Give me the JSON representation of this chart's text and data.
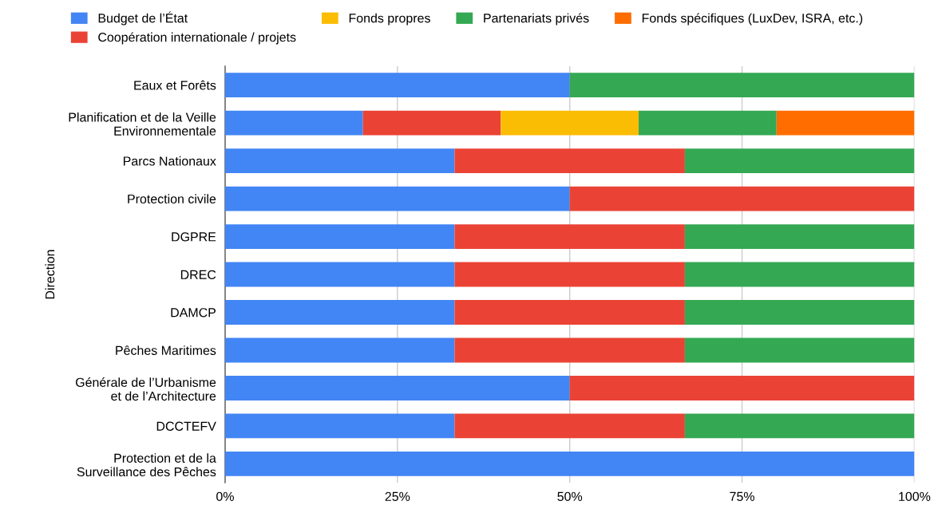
{
  "chart_data": {
    "type": "bar",
    "orientation": "horizontal",
    "stacked": true,
    "ylabel": "Direction",
    "categories": [
      "Eaux et Forêts",
      "Planification et de la Veille\nEnvironnementale",
      "Parcs Nationaux",
      "Protection civile",
      "DGPRE",
      "DREC",
      "DAMCP",
      "Pêches Maritimes",
      "Générale de l’Urbanisme\net de l’Architecture",
      "DCCTEFV",
      "Protection et de la\nSurveillance des Pêches"
    ],
    "series": [
      {
        "name": "Budget de l’État",
        "color": "#4285f4",
        "values": [
          50,
          20,
          33.3,
          50,
          33.3,
          33.3,
          33.3,
          33.3,
          50,
          33.3,
          100
        ]
      },
      {
        "name": "Coopération internationale / projets",
        "color": "#ea4335",
        "values": [
          null,
          20,
          33.4,
          50,
          33.4,
          33.4,
          33.4,
          33.4,
          50,
          33.4,
          null
        ]
      },
      {
        "name": "Fonds propres",
        "color": "#fbbc04",
        "values": [
          null,
          20,
          null,
          null,
          null,
          null,
          null,
          null,
          null,
          null,
          null
        ]
      },
      {
        "name": "Partenariats privés",
        "color": "#34a853",
        "values": [
          50,
          20,
          33.3,
          null,
          33.3,
          33.3,
          33.3,
          33.3,
          null,
          33.3,
          null
        ]
      },
      {
        "name": "Fonds spécifiques (LuxDev, ISRA, etc.)",
        "color": "#ff6d01",
        "values": [
          null,
          20,
          null,
          null,
          null,
          null,
          null,
          null,
          null,
          null,
          null
        ]
      }
    ],
    "xlim": [
      0,
      100
    ],
    "xticks": [
      {
        "value": 0,
        "label": "0%"
      },
      {
        "value": 25,
        "label": "25%"
      },
      {
        "value": 50,
        "label": "50%"
      },
      {
        "value": 75,
        "label": "75%"
      },
      {
        "value": 100,
        "label": "100%"
      }
    ],
    "grid": "x",
    "legend": "top"
  }
}
